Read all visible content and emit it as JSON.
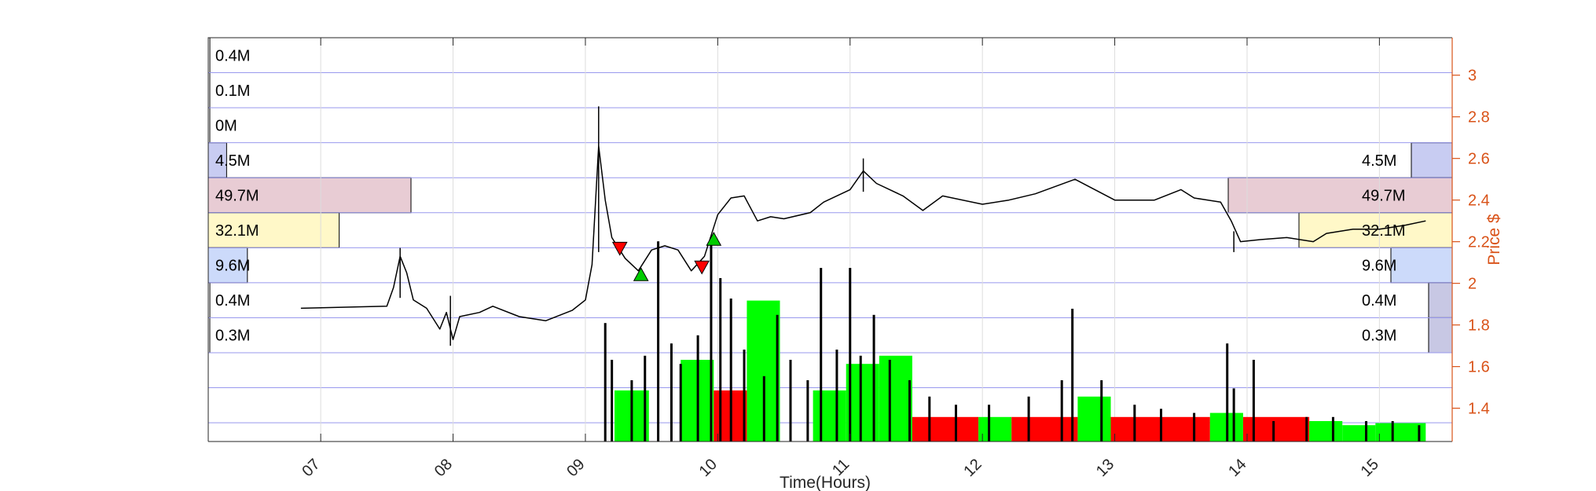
{
  "chart_data": {
    "type": "candlestick",
    "xlabel": "Time(Hours)",
    "ylabel": "Price $",
    "xlim": [
      6.15,
      15.55
    ],
    "ylim": [
      1.24,
      3.18
    ],
    "x_ticks": [
      7,
      8,
      9,
      10,
      11,
      12,
      13,
      14,
      15
    ],
    "x_tick_labels": [
      "07",
      "08",
      "09",
      "10",
      "11",
      "12",
      "13",
      "14",
      "15"
    ],
    "y_ticks": [
      1.4,
      1.6,
      1.8,
      2.0,
      2.2,
      2.4,
      2.6,
      2.8,
      3.0
    ],
    "y_tick_labels": [
      "1.4",
      "1.6",
      "1.8",
      "2",
      "2.2",
      "2.4",
      "2.6",
      "2.8",
      "3"
    ],
    "grid": true,
    "colors": {
      "price_axis": "#D95319",
      "price_line": "#000000",
      "volume_bar": "#000000",
      "buy_volume": "#00FF00",
      "sell_volume": "#FF0000",
      "buy_marker": "#00CC00",
      "sell_marker": "#FF0000",
      "profile_band_line": "#9999EE"
    },
    "price_path": [
      [
        6.85,
        1.88
      ],
      [
        7.5,
        1.89
      ],
      [
        7.55,
        1.98
      ],
      [
        7.6,
        2.13
      ],
      [
        7.65,
        2.05
      ],
      [
        7.7,
        1.92
      ],
      [
        7.8,
        1.88
      ],
      [
        7.9,
        1.78
      ],
      [
        7.95,
        1.86
      ],
      [
        8.0,
        1.73
      ],
      [
        8.05,
        1.84
      ],
      [
        8.2,
        1.86
      ],
      [
        8.3,
        1.89
      ],
      [
        8.5,
        1.84
      ],
      [
        8.7,
        1.82
      ],
      [
        8.9,
        1.87
      ],
      [
        9.0,
        1.92
      ],
      [
        9.05,
        2.09
      ],
      [
        9.1,
        2.66
      ],
      [
        9.15,
        2.4
      ],
      [
        9.2,
        2.22
      ],
      [
        9.3,
        2.12
      ],
      [
        9.4,
        2.06
      ],
      [
        9.5,
        2.16
      ],
      [
        9.6,
        2.18
      ],
      [
        9.7,
        2.16
      ],
      [
        9.8,
        2.06
      ],
      [
        9.9,
        2.13
      ],
      [
        10.0,
        2.33
      ],
      [
        10.1,
        2.41
      ],
      [
        10.2,
        2.42
      ],
      [
        10.3,
        2.3
      ],
      [
        10.4,
        2.32
      ],
      [
        10.5,
        2.31
      ],
      [
        10.7,
        2.34
      ],
      [
        10.8,
        2.39
      ],
      [
        11.0,
        2.45
      ],
      [
        11.1,
        2.54
      ],
      [
        11.2,
        2.48
      ],
      [
        11.4,
        2.42
      ],
      [
        11.55,
        2.35
      ],
      [
        11.7,
        2.42
      ],
      [
        12.0,
        2.38
      ],
      [
        12.2,
        2.4
      ],
      [
        12.4,
        2.43
      ],
      [
        12.7,
        2.5
      ],
      [
        12.85,
        2.45
      ],
      [
        13.0,
        2.4
      ],
      [
        13.3,
        2.4
      ],
      [
        13.5,
        2.45
      ],
      [
        13.6,
        2.41
      ],
      [
        13.8,
        2.39
      ],
      [
        13.88,
        2.3
      ],
      [
        13.95,
        2.2
      ],
      [
        14.1,
        2.21
      ],
      [
        14.3,
        2.22
      ],
      [
        14.5,
        2.2
      ],
      [
        14.6,
        2.24
      ],
      [
        14.8,
        2.26
      ],
      [
        15.0,
        2.26
      ],
      [
        15.2,
        2.28
      ],
      [
        15.35,
        2.3
      ]
    ],
    "price_spikes": [
      {
        "x": 7.6,
        "high": 2.17,
        "low": 1.93
      },
      {
        "x": 7.98,
        "high": 1.94,
        "low": 1.7
      },
      {
        "x": 9.1,
        "high": 2.85,
        "low": 2.15
      },
      {
        "x": 11.1,
        "high": 2.6,
        "low": 2.44
      },
      {
        "x": 13.9,
        "high": 2.25,
        "low": 2.15
      }
    ],
    "trade_markers": [
      {
        "type": "sell",
        "x": 9.26,
        "y": 2.17
      },
      {
        "type": "buy",
        "x": 9.42,
        "y": 2.04
      },
      {
        "type": "sell",
        "x": 9.88,
        "y": 2.08
      },
      {
        "type": "buy",
        "x": 9.97,
        "y": 2.21
      }
    ],
    "volume_profile_left": {
      "values_M": [
        0.4,
        0.1,
        0,
        4.5,
        49.7,
        32.1,
        9.6,
        0.4,
        0.3
      ],
      "labels": [
        "0.4M",
        "0.1M",
        "0M",
        "4.5M",
        "49.7M",
        "32.1M",
        "9.6M",
        "0.4M",
        "0.3M"
      ],
      "colors": [
        "#FFFFFF",
        "#FFFFFF",
        "#FFFFFF",
        "#C8CCF2",
        "#E8CCD4",
        "#FFF8C8",
        "#CCDAFA",
        "#FFFFFF",
        "#FFFFFF"
      ]
    },
    "volume_profile_right": {
      "values_M": [
        4.5,
        49.7,
        32.1,
        9.6,
        0.4,
        0.3
      ],
      "labels": [
        "4.5M",
        "49.7M",
        "32.1M",
        "9.6M",
        "0.4M",
        "0.3M"
      ],
      "colors": [
        "#C8CCF2",
        "#E8CCD4",
        "#FFF8C8",
        "#CCDAFA",
        "#C8C8E4",
        "#C8C8E4"
      ]
    },
    "volume_bars": [
      {
        "x": 9.15,
        "h": 0.58
      },
      {
        "x": 9.2,
        "h": 0.4
      },
      {
        "x": 9.35,
        "h": 0.3
      },
      {
        "x": 9.45,
        "h": 0.42
      },
      {
        "x": 9.55,
        "h": 0.98
      },
      {
        "x": 9.65,
        "h": 0.48
      },
      {
        "x": 9.72,
        "h": 0.38
      },
      {
        "x": 9.85,
        "h": 0.52
      },
      {
        "x": 9.95,
        "h": 1.0
      },
      {
        "x": 10.02,
        "h": 0.8
      },
      {
        "x": 10.1,
        "h": 0.7
      },
      {
        "x": 10.2,
        "h": 0.45
      },
      {
        "x": 10.35,
        "h": 0.32
      },
      {
        "x": 10.45,
        "h": 0.62
      },
      {
        "x": 10.55,
        "h": 0.4
      },
      {
        "x": 10.68,
        "h": 0.3
      },
      {
        "x": 10.78,
        "h": 0.85
      },
      {
        "x": 10.9,
        "h": 0.45
      },
      {
        "x": 11.0,
        "h": 0.85
      },
      {
        "x": 11.08,
        "h": 0.42
      },
      {
        "x": 11.18,
        "h": 0.62
      },
      {
        "x": 11.3,
        "h": 0.4
      },
      {
        "x": 11.45,
        "h": 0.3
      },
      {
        "x": 11.6,
        "h": 0.22
      },
      {
        "x": 11.8,
        "h": 0.18
      },
      {
        "x": 12.05,
        "h": 0.18
      },
      {
        "x": 12.35,
        "h": 0.22
      },
      {
        "x": 12.6,
        "h": 0.3
      },
      {
        "x": 12.68,
        "h": 0.65
      },
      {
        "x": 12.9,
        "h": 0.3
      },
      {
        "x": 13.15,
        "h": 0.18
      },
      {
        "x": 13.35,
        "h": 0.16
      },
      {
        "x": 13.6,
        "h": 0.14
      },
      {
        "x": 13.85,
        "h": 0.48
      },
      {
        "x": 13.9,
        "h": 0.26
      },
      {
        "x": 14.05,
        "h": 0.4
      },
      {
        "x": 14.2,
        "h": 0.1
      },
      {
        "x": 14.45,
        "h": 0.12
      },
      {
        "x": 14.65,
        "h": 0.12
      },
      {
        "x": 14.9,
        "h": 0.1
      },
      {
        "x": 15.1,
        "h": 0.1
      },
      {
        "x": 15.3,
        "h": 0.08
      }
    ],
    "buy_sell_blocks": [
      {
        "side": "buy",
        "x0": 9.22,
        "x1": 9.48,
        "h": 0.25
      },
      {
        "side": "buy",
        "x0": 9.72,
        "x1": 9.97,
        "h": 0.4
      },
      {
        "side": "buy",
        "x0": 10.22,
        "x1": 10.47,
        "h": 0.69
      },
      {
        "side": "sell",
        "x0": 9.97,
        "x1": 10.22,
        "h": 0.25
      },
      {
        "side": "buy",
        "x0": 10.72,
        "x1": 10.97,
        "h": 0.25
      },
      {
        "side": "buy",
        "x0": 10.97,
        "x1": 11.22,
        "h": 0.38
      },
      {
        "side": "buy",
        "x0": 11.22,
        "x1": 11.47,
        "h": 0.42
      },
      {
        "side": "sell",
        "x0": 11.47,
        "x1": 11.97,
        "h": 0.12
      },
      {
        "side": "buy",
        "x0": 11.97,
        "x1": 12.22,
        "h": 0.12
      },
      {
        "side": "sell",
        "x0": 12.22,
        "x1": 12.72,
        "h": 0.12
      },
      {
        "side": "buy",
        "x0": 12.72,
        "x1": 12.97,
        "h": 0.22
      },
      {
        "side": "sell",
        "x0": 12.97,
        "x1": 13.72,
        "h": 0.12
      },
      {
        "side": "buy",
        "x0": 13.72,
        "x1": 13.97,
        "h": 0.14
      },
      {
        "side": "sell",
        "x0": 13.97,
        "x1": 14.47,
        "h": 0.12
      },
      {
        "side": "buy",
        "x0": 14.47,
        "x1": 14.72,
        "h": 0.1
      },
      {
        "side": "buy",
        "x0": 14.72,
        "x1": 14.97,
        "h": 0.08
      },
      {
        "side": "buy",
        "x0": 14.97,
        "x1": 15.35,
        "h": 0.09
      }
    ]
  }
}
